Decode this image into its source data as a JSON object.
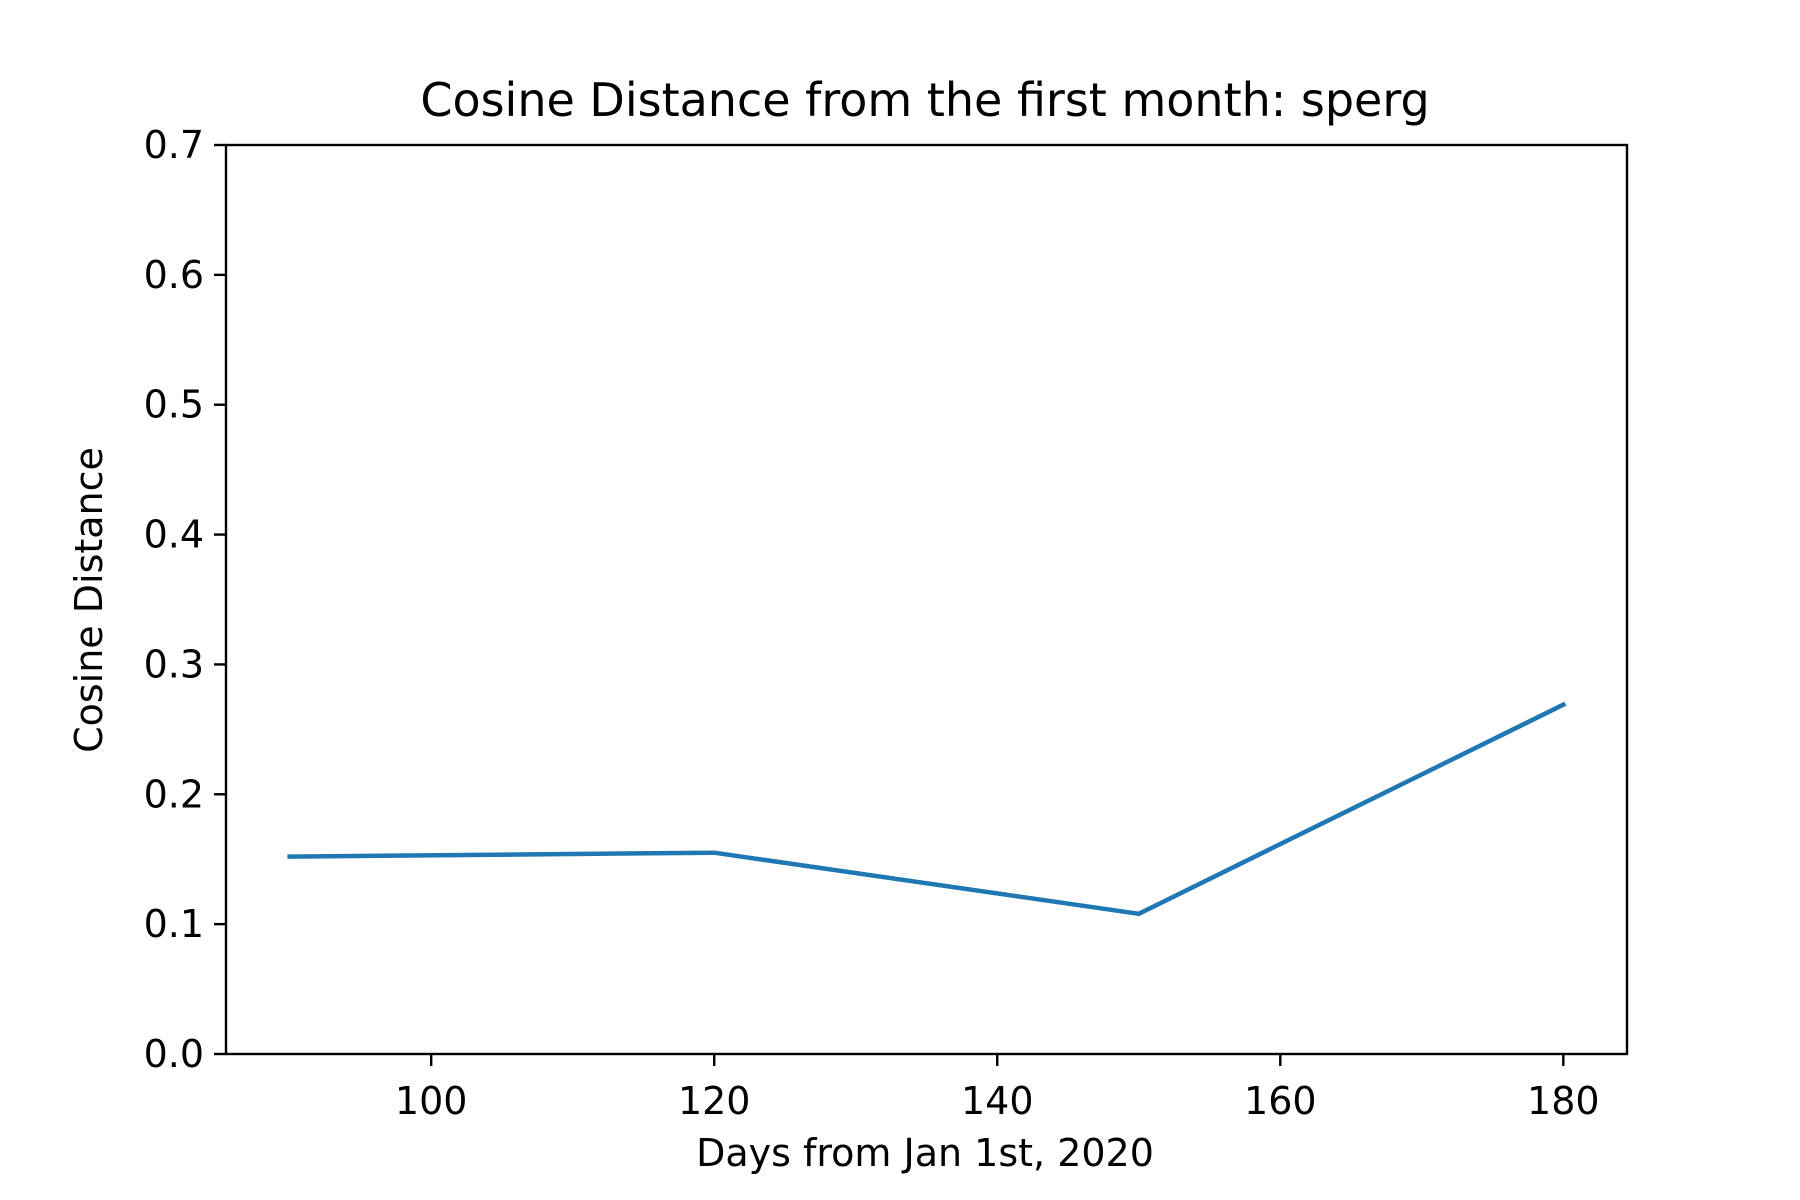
{
  "chart_data": {
    "type": "line",
    "title": "Cosine Distance from the first month: sperg",
    "xlabel": "Days from Jan 1st, 2020",
    "ylabel": "Cosine Distance",
    "xlim": [
      85.5,
      184.5
    ],
    "ylim": [
      0.0,
      0.7
    ],
    "xticks": [
      100,
      120,
      140,
      160,
      180
    ],
    "xtick_labels": [
      "100",
      "120",
      "140",
      "160",
      "180"
    ],
    "yticks": [
      0.0,
      0.1,
      0.2,
      0.3,
      0.4,
      0.5,
      0.6,
      0.7
    ],
    "ytick_labels": [
      "0.0",
      "0.1",
      "0.2",
      "0.3",
      "0.4",
      "0.5",
      "0.6",
      "0.7"
    ],
    "grid": false,
    "series": [
      {
        "x": [
          90,
          120,
          150,
          180
        ],
        "y": [
          0.152,
          0.155,
          0.108,
          0.269
        ],
        "color": "#1f77b4"
      }
    ]
  }
}
